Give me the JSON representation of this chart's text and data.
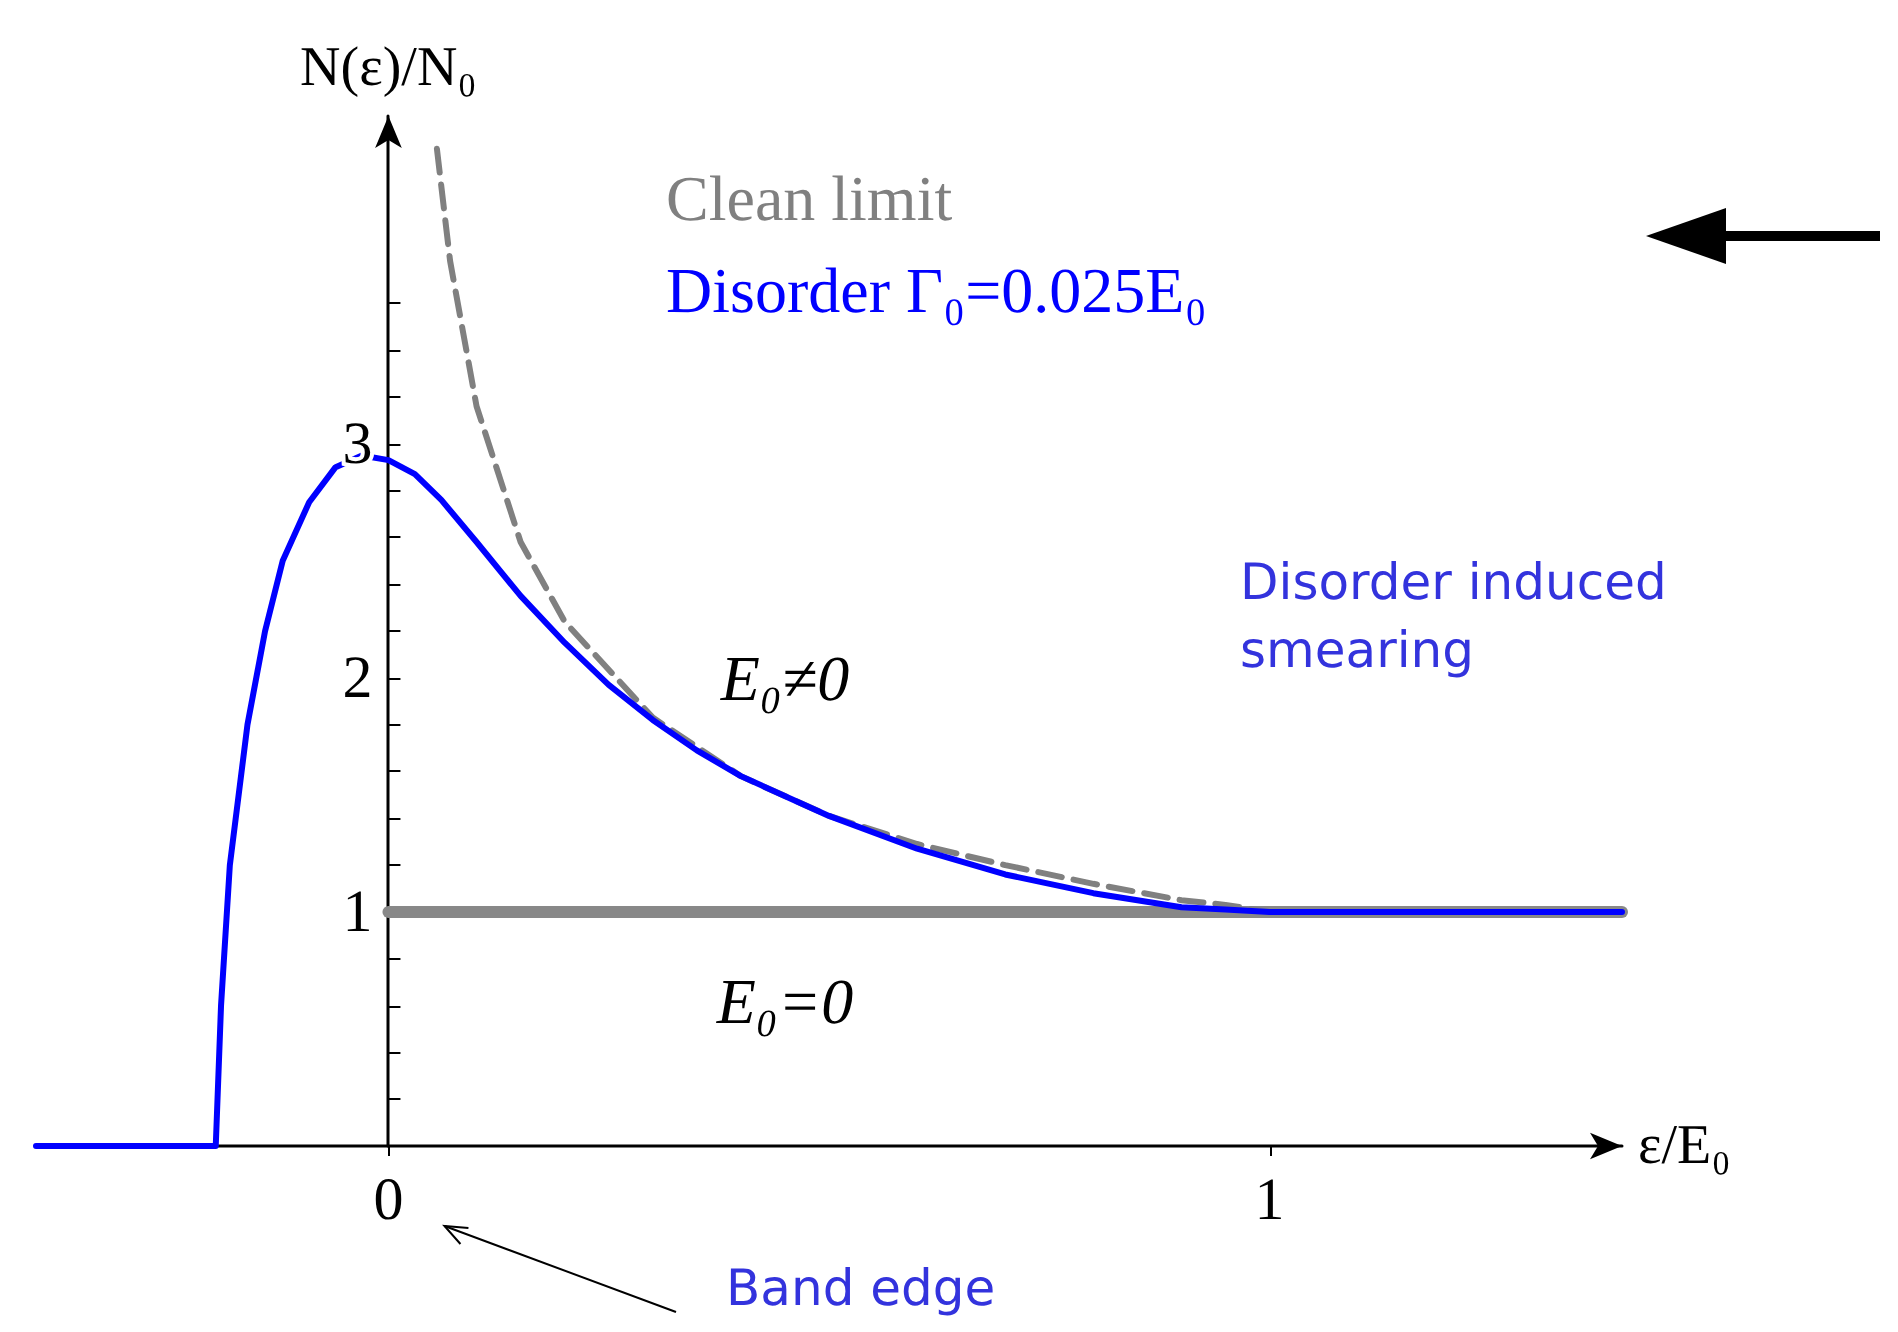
{
  "chart_data": {
    "type": "line",
    "xlabel": "ε/E₀",
    "ylabel": "N(ε)/N₀",
    "xlim": [
      -0.4,
      1.4
    ],
    "ylim": [
      0,
      4.4
    ],
    "xticks": [
      0,
      1
    ],
    "yticks": [
      {
        "value": 0.2,
        "label": null
      },
      {
        "value": 0.4,
        "label": null
      },
      {
        "value": 0.6,
        "label": null
      },
      {
        "value": 0.8,
        "label": null
      },
      1,
      {
        "value": 1.2,
        "label": null
      },
      {
        "value": 1.4,
        "label": null
      },
      {
        "value": 1.6,
        "label": null
      },
      {
        "value": 1.8,
        "label": null
      },
      2,
      {
        "value": 2.2,
        "label": null
      },
      {
        "value": 2.4,
        "label": null
      },
      {
        "value": 2.6,
        "label": null
      },
      {
        "value": 2.8,
        "label": null
      },
      3,
      {
        "value": 3.2,
        "label": null
      },
      {
        "value": 3.4,
        "label": null
      },
      {
        "value": 3.6,
        "label": null
      }
    ],
    "grid": false,
    "legend": "top",
    "marker": "none",
    "series": [
      {
        "name": "Clean limit",
        "color": "#808080",
        "line_style": "dashed",
        "x": [
          0.055,
          0.07,
          0.1,
          0.15,
          0.2,
          0.3,
          0.4,
          0.5,
          0.6,
          0.7,
          0.8,
          0.9,
          0.95,
          1.0
        ],
        "values": [
          4.26,
          3.78,
          3.16,
          2.58,
          2.24,
          1.83,
          1.58,
          1.41,
          1.29,
          1.2,
          1.12,
          1.05,
          1.03,
          1.0
        ]
      },
      {
        "name": "Disorder Γ₀=0.025E₀",
        "color": "#0000ff",
        "line_style": "solid",
        "x": [
          -0.4,
          -0.196,
          -0.19,
          -0.18,
          -0.16,
          -0.14,
          -0.12,
          -0.09,
          -0.06,
          -0.03,
          0,
          0.03,
          0.06,
          0.1,
          0.15,
          0.2,
          0.25,
          0.3,
          0.35,
          0.4,
          0.5,
          0.6,
          0.7,
          0.8,
          0.9,
          0.95,
          1.0,
          1.4
        ],
        "values": [
          0,
          0,
          0.6,
          1.2,
          1.8,
          2.2,
          2.5,
          2.75,
          2.9,
          2.95,
          2.93,
          2.87,
          2.76,
          2.58,
          2.35,
          2.15,
          1.97,
          1.82,
          1.69,
          1.58,
          1.41,
          1.27,
          1.16,
          1.08,
          1.02,
          1.01,
          1.0,
          1.0
        ]
      },
      {
        "color": "#888888",
        "line_style": "solid",
        "x": [
          0,
          1.4
        ],
        "values": [
          1,
          1
        ]
      }
    ],
    "annotations": [
      "E₀≠0",
      "E₀=0",
      "Disorder induced smearing",
      "Band edge"
    ]
  }
}
